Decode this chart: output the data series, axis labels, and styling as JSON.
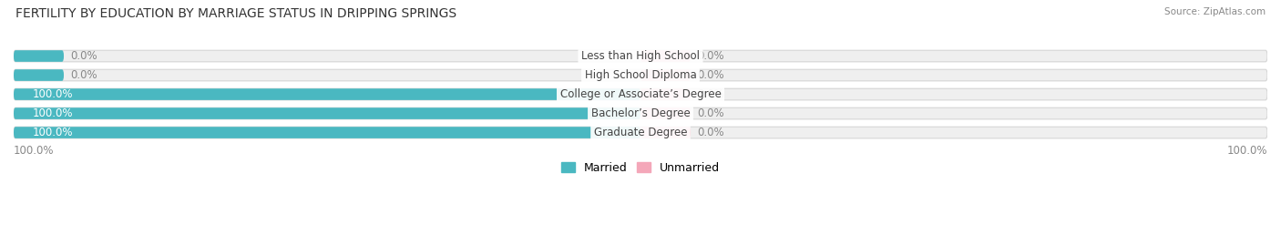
{
  "title": "FERTILITY BY EDUCATION BY MARRIAGE STATUS IN DRIPPING SPRINGS",
  "source": "Source: ZipAtlas.com",
  "categories": [
    "Less than High School",
    "High School Diploma",
    "College or Associate’s Degree",
    "Bachelor’s Degree",
    "Graduate Degree"
  ],
  "married_values": [
    0.0,
    0.0,
    100.0,
    100.0,
    100.0
  ],
  "unmarried_values": [
    0.0,
    0.0,
    0.0,
    0.0,
    0.0
  ],
  "married_color": "#4ab8c1",
  "unmarried_color": "#f4a7b9",
  "bar_bg_color": "#efefef",
  "bar_height": 0.6,
  "background_color": "#ffffff",
  "title_fontsize": 10.0,
  "label_fontsize": 8.5,
  "tick_fontsize": 8.5,
  "legend_fontsize": 9,
  "axis_label_color": "#888888",
  "bar_label_married_color": "#ffffff",
  "bar_label_unmarried_color": "#777777",
  "category_label_color": "#444444",
  "left_axis_value": "100.0%",
  "right_axis_value": "100.0%",
  "xlim": [
    -100,
    100
  ],
  "min_bar_width": 8
}
